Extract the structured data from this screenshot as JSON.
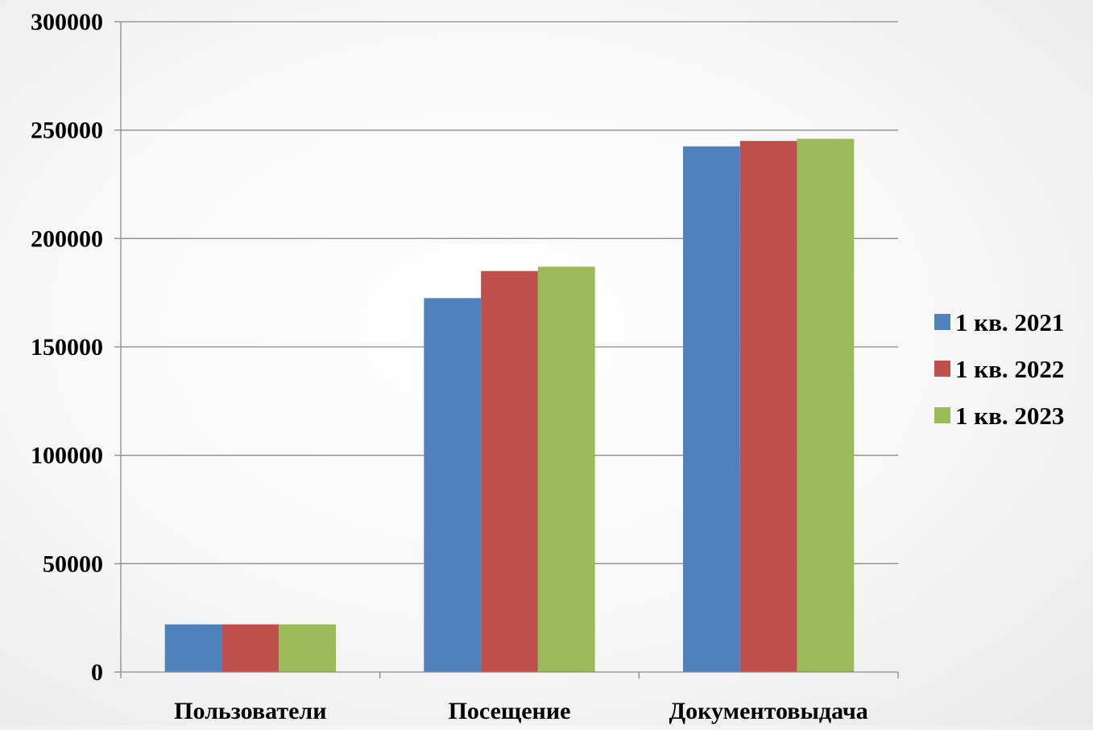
{
  "chart_data": {
    "type": "bar",
    "title": "",
    "xlabel": "",
    "ylabel": "",
    "categories": [
      "Пользователи",
      "Посещение",
      "Документовыдача"
    ],
    "series": [
      {
        "name": "1 кв. 2021",
        "color": "#4F81BD",
        "values": [
          22000,
          172500,
          242500
        ]
      },
      {
        "name": "1 кв. 2022",
        "color": "#C0504D",
        "values": [
          22000,
          185000,
          245000
        ]
      },
      {
        "name": "1 кв. 2023",
        "color": "#9BBB59",
        "values": [
          22000,
          187000,
          246000
        ]
      }
    ],
    "ylim": [
      0,
      300000
    ],
    "yticks": [
      "0",
      "50000",
      "100000",
      "150000",
      "200000",
      "250000",
      "300000"
    ],
    "grid": true,
    "legend_position": "right"
  }
}
